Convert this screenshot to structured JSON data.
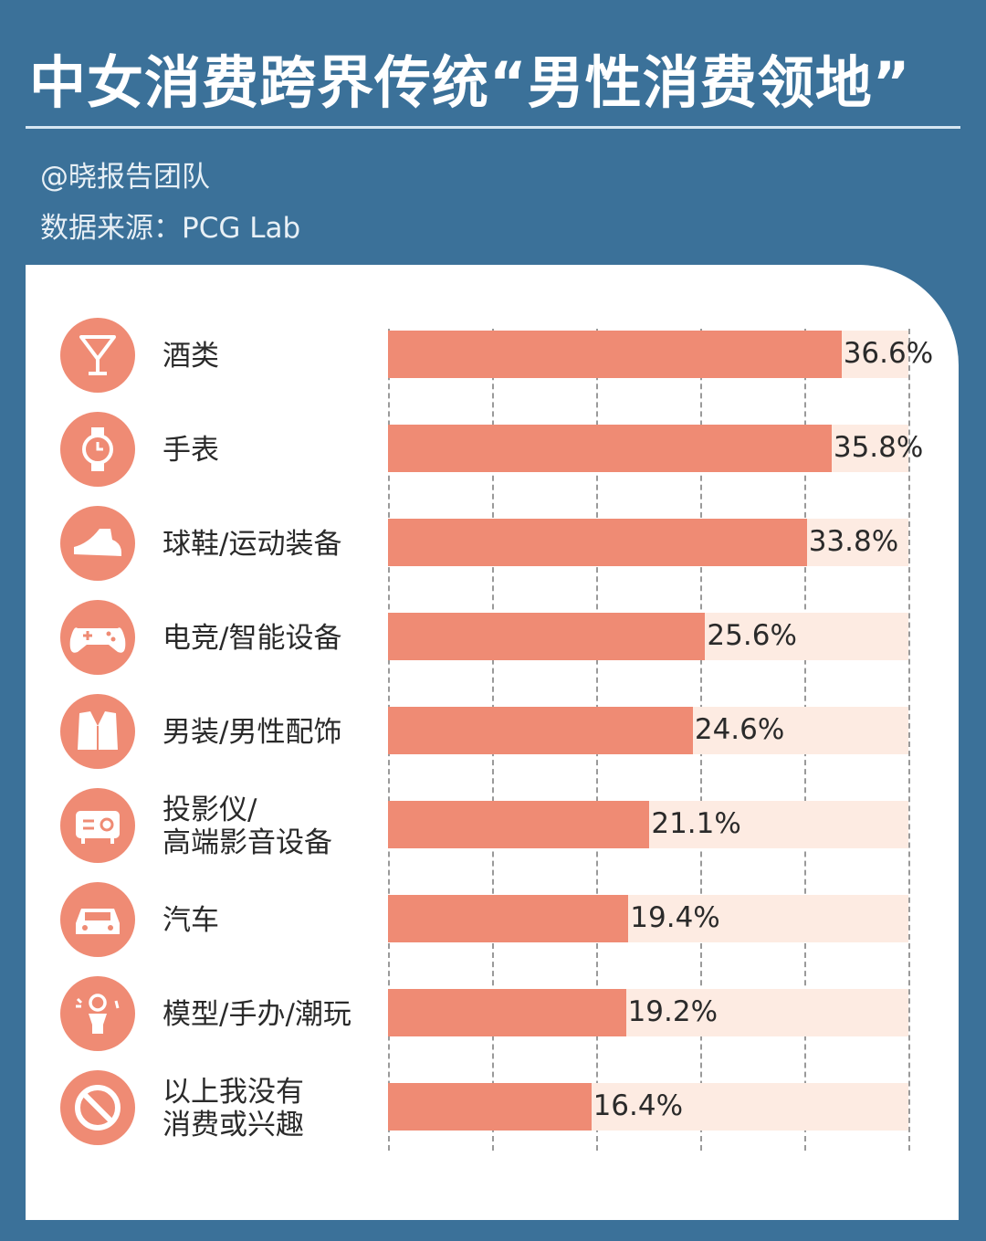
{
  "header": {
    "title": "中女消费跨界传统“男性消费领地”",
    "author": "@晓报告团队",
    "source": "数据来源：PCG Lab"
  },
  "colors": {
    "background": "#3b7199",
    "bar": "#ef8b74",
    "track": "#fdebe2"
  },
  "chart_data": {
    "type": "bar",
    "orientation": "horizontal",
    "title": "中女消费跨界传统“男性消费领地”",
    "xlabel": "",
    "ylabel": "",
    "xlim": [
      0,
      42
    ],
    "grid": true,
    "categories": [
      "酒类",
      "手表",
      "球鞋/运动装备",
      "电竞/智能设备",
      "男装/男性配饰",
      "投影仪/高端影音设备",
      "汽车",
      "模型/手办/潮玩",
      "以上我没有消费或兴趣"
    ],
    "values": [
      36.6,
      35.8,
      33.8,
      25.6,
      24.6,
      21.1,
      19.4,
      19.2,
      16.4
    ],
    "rows": [
      {
        "line1": "酒类",
        "line2": "",
        "value_label": "36.6%",
        "icon": "cocktail-glass-icon"
      },
      {
        "line1": "手表",
        "line2": "",
        "value_label": "35.8%",
        "icon": "watch-icon"
      },
      {
        "line1": "球鞋/运动装备",
        "line2": "",
        "value_label": "33.8%",
        "icon": "sneaker-icon"
      },
      {
        "line1": "电竞/智能设备",
        "line2": "",
        "value_label": "25.6%",
        "icon": "gamepad-icon"
      },
      {
        "line1": "男装/男性配饰",
        "line2": "",
        "value_label": "24.6%",
        "icon": "suit-icon"
      },
      {
        "line1": "投影仪/",
        "line2": "高端影音设备",
        "value_label": "21.1%",
        "icon": "projector-icon"
      },
      {
        "line1": "汽车",
        "line2": "",
        "value_label": "19.4%",
        "icon": "car-icon"
      },
      {
        "line1": "模型/手办/潮玩",
        "line2": "",
        "value_label": "19.2%",
        "icon": "figure-toy-icon"
      },
      {
        "line1": "以上我没有",
        "line2": "消费或兴趣",
        "value_label": "16.4%",
        "icon": "prohibited-icon"
      }
    ]
  }
}
